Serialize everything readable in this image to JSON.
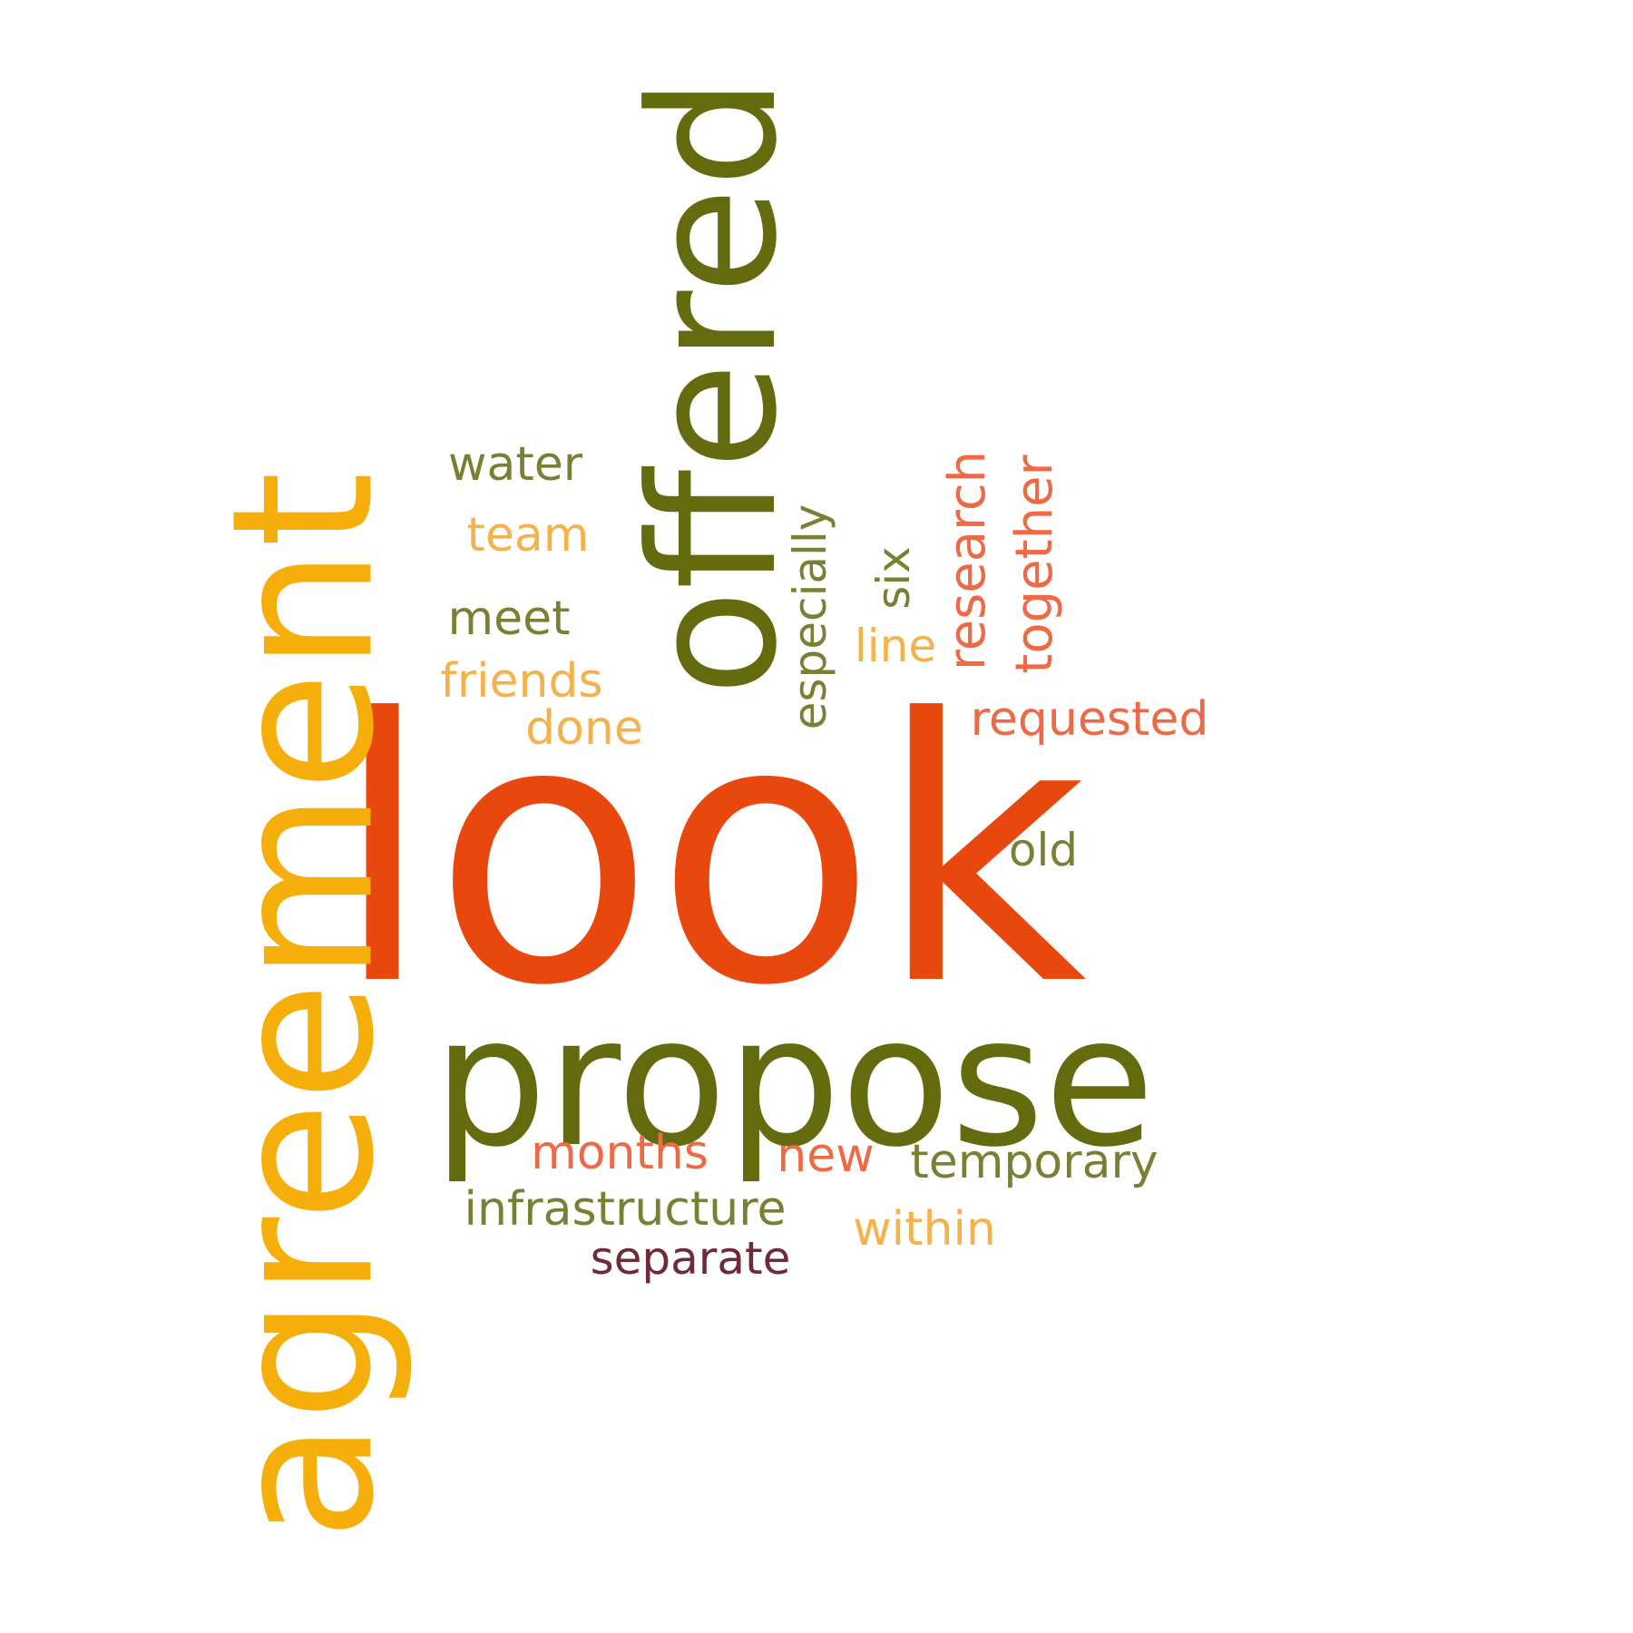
{
  "colors": {
    "orange_red": "#E8470E",
    "olive": "#646B0E",
    "amber": "#F6AE0A",
    "light_amber": "#F5B24C",
    "coral": "#EE6946",
    "olive_muted": "#7A8033",
    "maroon": "#6E2A3A",
    "background": "#FFFFFF"
  },
  "words": {
    "look": "look",
    "propose": "propose",
    "agreement": "agreement",
    "offered": "offered",
    "water": "water",
    "team": "team",
    "meet": "meet",
    "friends": "friends",
    "done": "done",
    "especially": "especially",
    "six": "six",
    "line": "line",
    "research": "research",
    "together": "together",
    "requested": "requested",
    "old": "old",
    "months": "months",
    "new": "new",
    "temporary": "temporary",
    "infrastructure": "infrastructure",
    "within": "within",
    "separate": "separate"
  }
}
